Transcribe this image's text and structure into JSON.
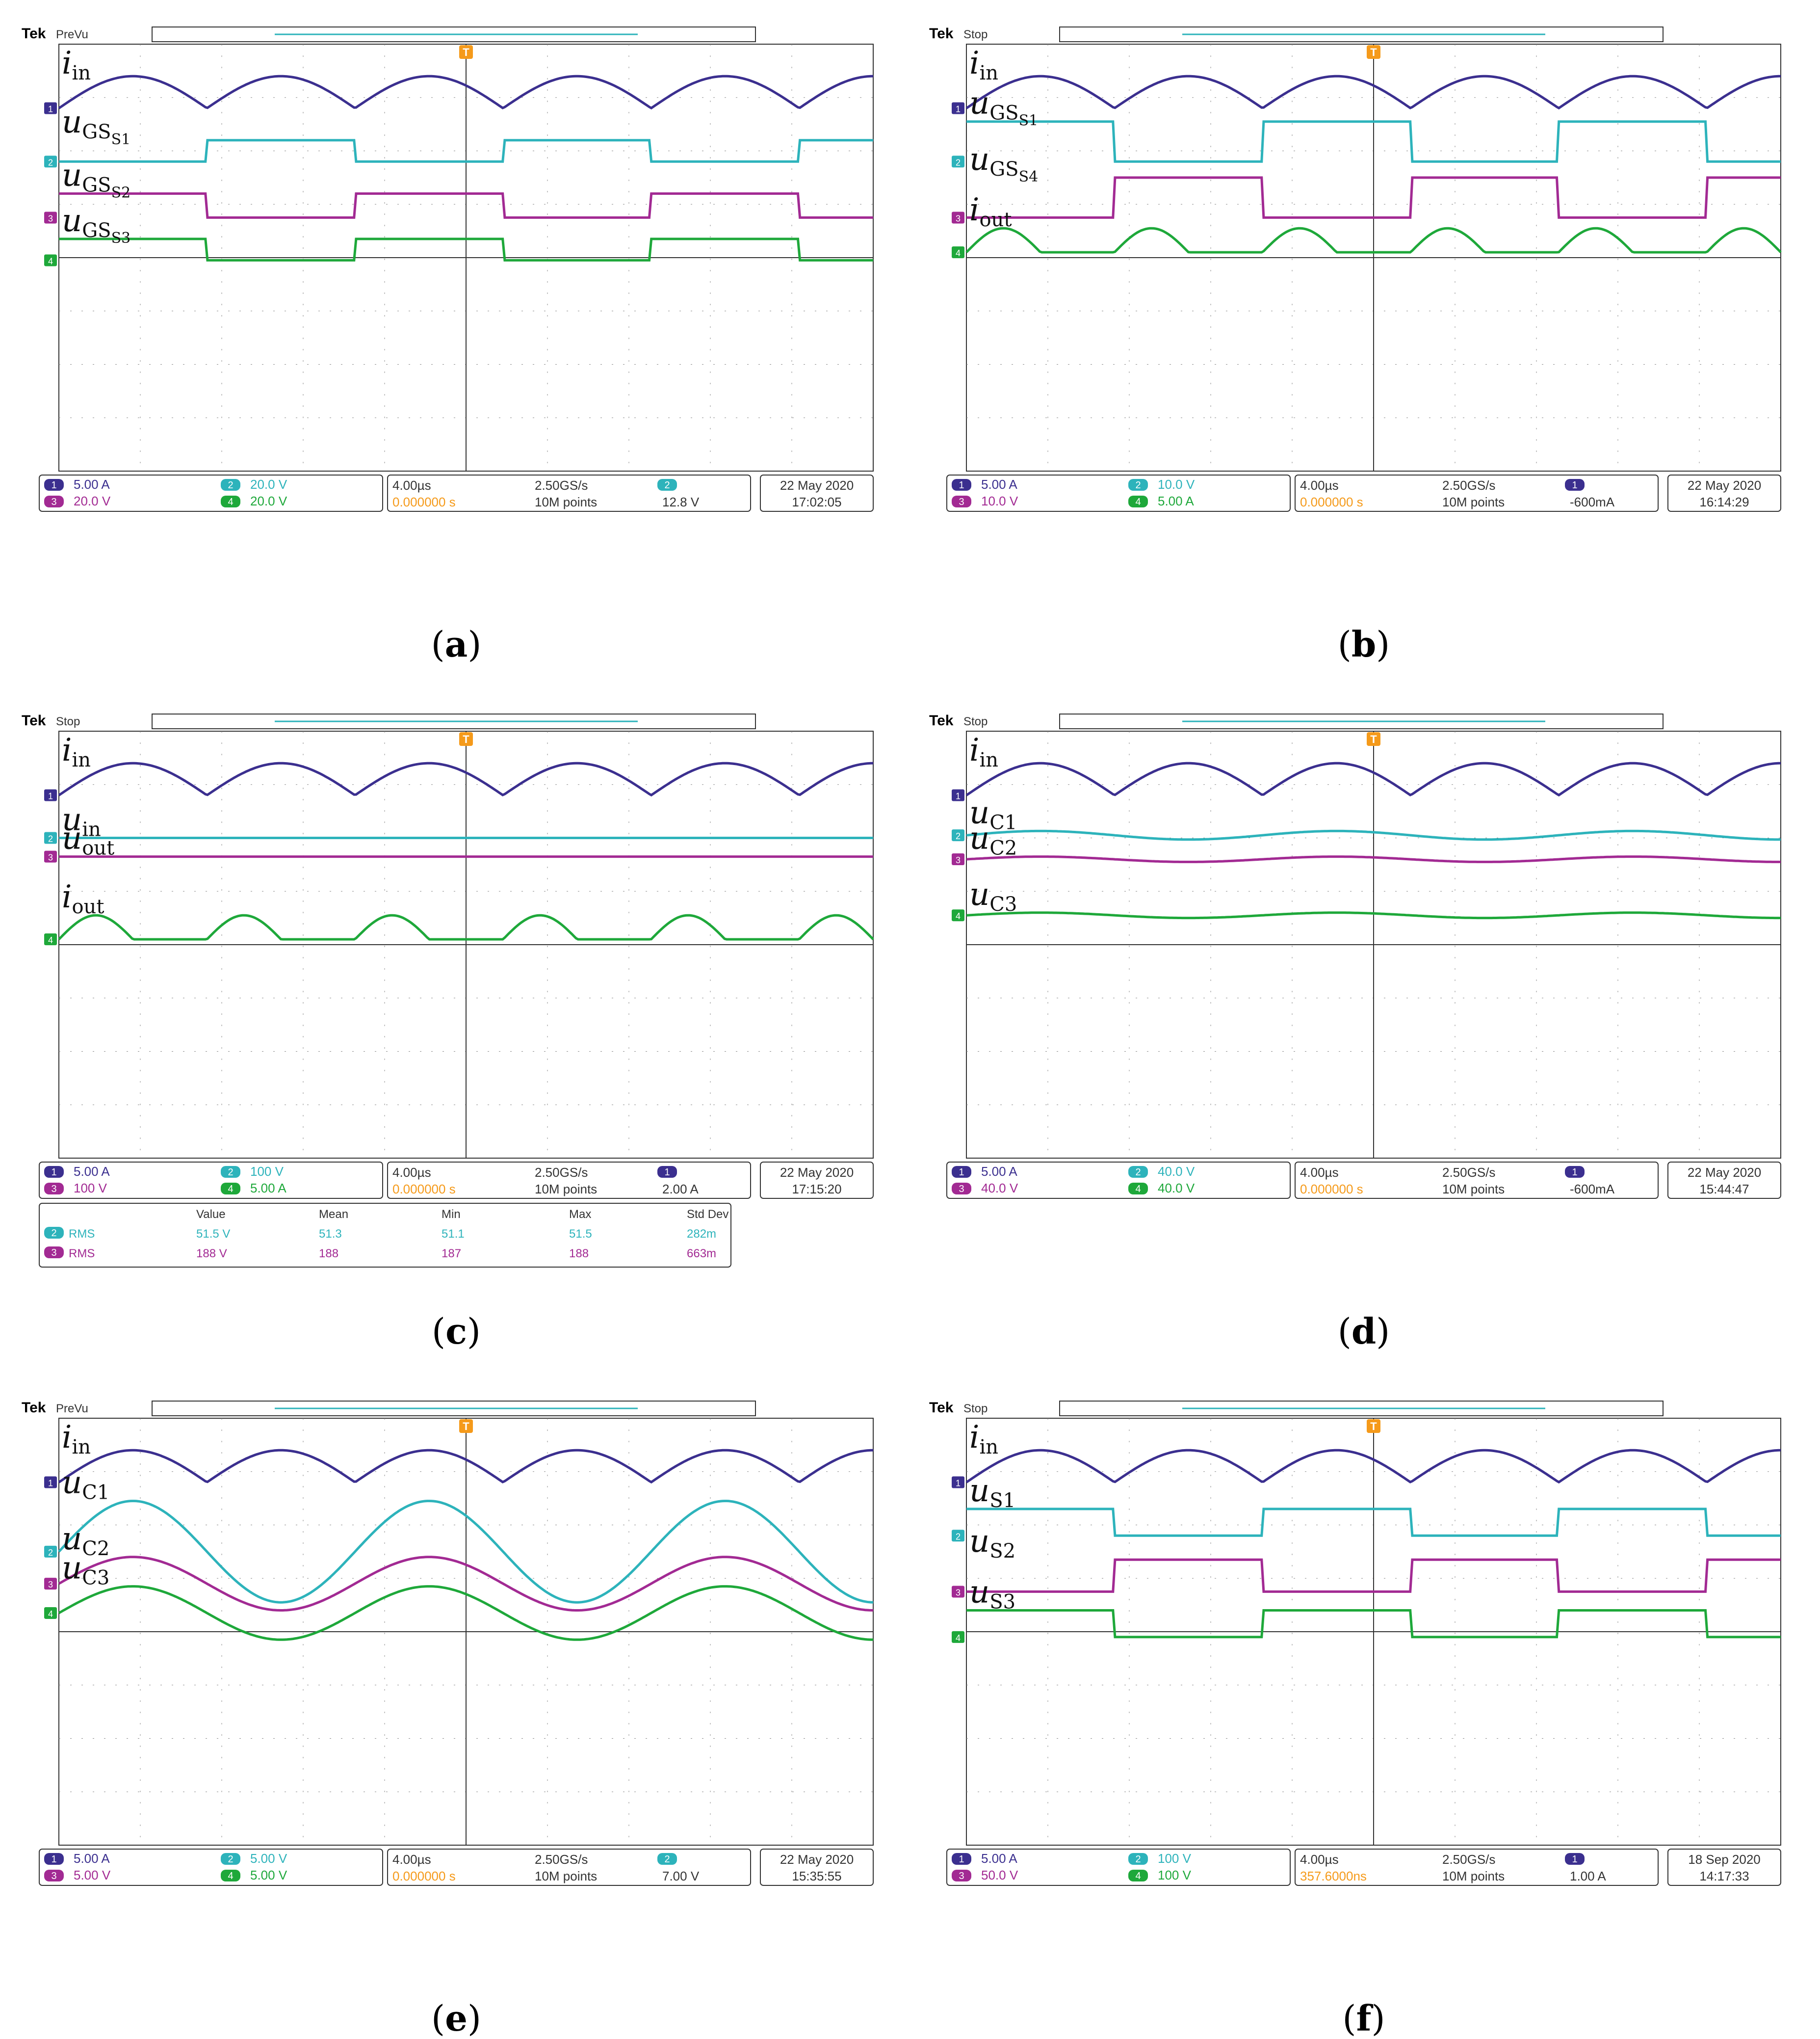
{
  "colors": {
    "ch1": "#3b2f8f",
    "ch2": "#2db3bb",
    "ch3": "#a22a93",
    "ch4": "#1ea83a",
    "trig": "#f59a1a",
    "grid": "#8a8a8a"
  },
  "chart_data": [
    {
      "type": "line",
      "id": "a",
      "caption": "a",
      "brand": "Tek",
      "status": "PreVu",
      "xlabel": "",
      "ylabel": "",
      "channels": [
        {
          "name": "ch1",
          "label_base": "i",
          "label_sub": "in",
          "wave": "ripple",
          "level": 1.2,
          "amp": 1.0,
          "freq": 5.5,
          "dir": 1
        },
        {
          "name": "ch2",
          "label_base": "u",
          "label_sub": "GS",
          "label_sub2": "S1",
          "wave": "square",
          "level": 2.2,
          "amp": 0.4,
          "freq": 2.75,
          "phase": 0.5
        },
        {
          "name": "ch3",
          "label_base": "u",
          "label_sub": "GS",
          "label_sub2": "S2",
          "wave": "square",
          "level": 3.25,
          "amp": 0.45,
          "freq": 2.75,
          "phase": 0.0
        },
        {
          "name": "ch4",
          "label_base": "u",
          "label_sub": "GS",
          "label_sub2": "S3",
          "wave": "square",
          "level": 4.05,
          "amp": 0.4,
          "freq": 2.75,
          "phase": 0.0
        }
      ],
      "readout": {
        "ch1": "5.00 A",
        "ch2": "20.0 V",
        "ch3": "20.0 V",
        "ch4": "20.0 V",
        "timebase": "4.00µs",
        "sample_rate": "2.50GS/s",
        "trig_pos": "0.000000 s",
        "points": "10M points",
        "trig_ch": "2",
        "trig_level": "12.8 V",
        "date": "22 May  2020",
        "time": "17:02:05"
      }
    },
    {
      "type": "line",
      "id": "b",
      "caption": "b",
      "brand": "Tek",
      "status": "Stop",
      "xlabel": "",
      "ylabel": "",
      "channels": [
        {
          "name": "ch1",
          "label_base": "i",
          "label_sub": "in",
          "wave": "ripple",
          "level": 1.2,
          "amp": 1.0,
          "freq": 5.5,
          "dir": 1
        },
        {
          "name": "ch2",
          "label_base": "u",
          "label_sub": "GS",
          "label_sub2": "S1",
          "wave": "square",
          "level": 2.2,
          "amp": 0.75,
          "freq": 2.75,
          "phase": 0.0
        },
        {
          "name": "ch3",
          "label_base": "u",
          "label_sub": "GS",
          "label_sub2": "S4",
          "wave": "square",
          "level": 3.25,
          "amp": 0.75,
          "freq": 2.75,
          "phase": 0.5
        },
        {
          "name": "ch4",
          "label_base": "i",
          "label_sub": "out",
          "wave": "hump",
          "level": 3.9,
          "amp": 0.45,
          "freq": 5.5
        }
      ],
      "readout": {
        "ch1": "5.00 A",
        "ch2": "10.0 V",
        "ch3": "10.0 V",
        "ch4": "5.00 A",
        "timebase": "4.00µs",
        "sample_rate": "2.50GS/s",
        "trig_pos": "0.000000 s",
        "points": "10M points",
        "trig_ch": "1",
        "trig_level": "-600mA",
        "date": "22 May  2020",
        "time": "16:14:29"
      }
    },
    {
      "type": "line",
      "id": "c",
      "caption": "c",
      "brand": "Tek",
      "status": "Stop",
      "xlabel": "",
      "ylabel": "",
      "channels": [
        {
          "name": "ch1",
          "label_base": "i",
          "label_sub": "in",
          "wave": "ripple",
          "level": 1.2,
          "amp": 1.0,
          "freq": 5.5,
          "dir": 1
        },
        {
          "name": "ch2",
          "label_base": "u",
          "label_sub": "in",
          "wave": "flat",
          "level": 2.0,
          "amp": 0.0
        },
        {
          "name": "ch3",
          "label_base": "u",
          "label_sub": "out",
          "wave": "flat",
          "level": 2.35,
          "amp": 0.0
        },
        {
          "name": "ch4",
          "label_base": "i",
          "label_sub": "out",
          "wave": "hump",
          "level": 3.9,
          "amp": 0.45,
          "freq": 5.5
        }
      ],
      "readout": {
        "ch1": "5.00 A",
        "ch2": "100 V",
        "ch3": "100 V",
        "ch4": "5.00 A",
        "timebase": "4.00µs",
        "sample_rate": "2.50GS/s",
        "trig_pos": "0.000000 s",
        "points": "10M points",
        "trig_ch": "1",
        "trig_level": "2.00 A",
        "date": "22 May  2020",
        "time": "17:15:20"
      },
      "measurements": {
        "headers": [
          "Value",
          "Mean",
          "Min",
          "Max",
          "Std Dev"
        ],
        "rows": [
          {
            "ch": "2",
            "name": "RMS",
            "value": "51.5 V",
            "mean": "51.3",
            "min": "51.1",
            "max": "51.5",
            "std": "282m"
          },
          {
            "ch": "3",
            "name": "RMS",
            "value": "188 V",
            "mean": "188",
            "min": "187",
            "max": "188",
            "std": "663m"
          }
        ]
      }
    },
    {
      "type": "line",
      "id": "d",
      "caption": "d",
      "brand": "Tek",
      "status": "Stop",
      "xlabel": "",
      "ylabel": "",
      "channels": [
        {
          "name": "ch1",
          "label_base": "i",
          "label_sub": "in",
          "wave": "ripple",
          "level": 1.2,
          "amp": 1.0,
          "freq": 5.5,
          "dir": 1
        },
        {
          "name": "ch2",
          "label_base": "u",
          "label_sub": "C1",
          "wave": "sine",
          "level": 1.95,
          "amp": 0.08,
          "freq": 2.75
        },
        {
          "name": "ch3",
          "label_base": "u",
          "label_sub": "C2",
          "wave": "sine",
          "level": 2.4,
          "amp": 0.05,
          "freq": 2.75
        },
        {
          "name": "ch4",
          "label_base": "u",
          "label_sub": "C3",
          "wave": "sine",
          "level": 3.45,
          "amp": 0.05,
          "freq": 2.75
        }
      ],
      "readout": {
        "ch1": "5.00 A",
        "ch2": "40.0 V",
        "ch3": "40.0 V",
        "ch4": "40.0 V",
        "timebase": "4.00µs",
        "sample_rate": "2.50GS/s",
        "trig_pos": "0.000000 s",
        "points": "10M points",
        "trig_ch": "1",
        "trig_level": "-600mA",
        "date": "22 May  2020",
        "time": "15:44:47"
      }
    },
    {
      "type": "line",
      "id": "e",
      "caption": "e",
      "brand": "Tek",
      "status": "PreVu",
      "xlabel": "",
      "ylabel": "",
      "channels": [
        {
          "name": "ch1",
          "label_base": "i",
          "label_sub": "in",
          "wave": "ripple",
          "level": 1.2,
          "amp": 1.0,
          "freq": 5.5,
          "dir": 1
        },
        {
          "name": "ch2",
          "label_base": "u",
          "label_sub": "C1",
          "wave": "sine",
          "level": 2.5,
          "amp": 0.95,
          "freq": 2.75
        },
        {
          "name": "ch3",
          "label_base": "u",
          "label_sub": "C2",
          "wave": "sine",
          "level": 3.1,
          "amp": 0.5,
          "freq": 2.75
        },
        {
          "name": "ch4",
          "label_base": "u",
          "label_sub": "C3",
          "wave": "sine",
          "level": 3.65,
          "amp": 0.5,
          "freq": 2.75
        }
      ],
      "readout": {
        "ch1": "5.00 A",
        "ch2": "5.00 V",
        "ch3": "5.00 V",
        "ch4": "5.00 V",
        "timebase": "4.00µs",
        "sample_rate": "2.50GS/s",
        "trig_pos": "0.000000 s",
        "points": "10M points",
        "trig_ch": "2",
        "trig_level": "7.00 V",
        "date": "22 May  2020",
        "time": "15:35:55"
      }
    },
    {
      "type": "line",
      "id": "f",
      "caption": "f",
      "brand": "Tek",
      "status": "Stop",
      "xlabel": "",
      "ylabel": "",
      "channels": [
        {
          "name": "ch1",
          "label_base": "i",
          "label_sub": "in",
          "wave": "ripple",
          "level": 1.2,
          "amp": 1.0,
          "freq": 5.5,
          "dir": 1
        },
        {
          "name": "ch2",
          "label_base": "u",
          "label_sub": "S1",
          "wave": "square",
          "level": 2.2,
          "amp": 0.5,
          "freq": 2.75,
          "phase": 0.0
        },
        {
          "name": "ch3",
          "label_base": "u",
          "label_sub": "S2",
          "wave": "square",
          "level": 3.25,
          "amp": 0.6,
          "freq": 2.75,
          "phase": 0.5
        },
        {
          "name": "ch4",
          "label_base": "u",
          "label_sub": "S3",
          "wave": "square",
          "level": 4.1,
          "amp": 0.5,
          "freq": 2.75,
          "phase": 0.0
        }
      ],
      "readout": {
        "ch1": "5.00 A",
        "ch2": "100 V",
        "ch3": "50.0 V",
        "ch4": "100 V",
        "timebase": "4.00µs",
        "sample_rate": "2.50GS/s",
        "trig_pos": "357.6000ns",
        "points": "10M points",
        "trig_ch": "1",
        "trig_level": "1.00 A",
        "date": "18 Sep  2020",
        "time": "14:17:33"
      }
    }
  ]
}
